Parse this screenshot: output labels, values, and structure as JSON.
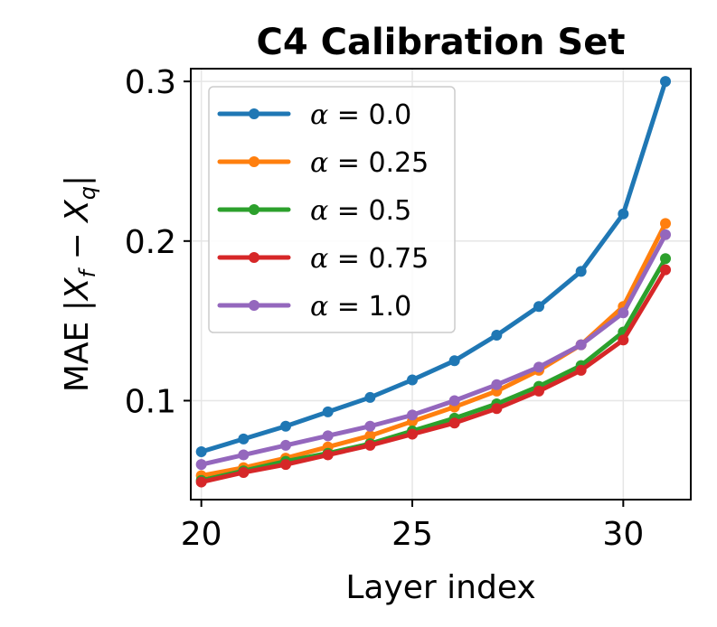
{
  "chart_data": {
    "type": "line",
    "title": "C4 Calibration Set",
    "xlabel": "Layer index",
    "ylabel": "MAE |X_f − X_q|",
    "ylabel_parts": {
      "prefix": "MAE |",
      "var": "X",
      "sub_f": "f",
      "minus": " − ",
      "sub_q": "q",
      "suffix": "|"
    },
    "xlim": [
      19.75,
      31.6
    ],
    "ylim": [
      0.038,
      0.308
    ],
    "xticks": [
      20,
      25,
      30
    ],
    "xtick_labels": [
      "20",
      "25",
      "30"
    ],
    "yticks": [
      0.1,
      0.2,
      0.3
    ],
    "ytick_labels": [
      "0.1",
      "0.2",
      "0.3"
    ],
    "grid": true,
    "legend_position": "top-left",
    "x": [
      20,
      21,
      22,
      23,
      24,
      25,
      26,
      27,
      28,
      29,
      30,
      31
    ],
    "series": [
      {
        "name": "α = 0.0",
        "alpha_value": "0.0",
        "color": "#1f77b4",
        "values": [
          0.068,
          0.076,
          0.084,
          0.093,
          0.102,
          0.113,
          0.125,
          0.141,
          0.159,
          0.181,
          0.217,
          0.3
        ]
      },
      {
        "name": "α = 0.25",
        "alpha_value": "0.25",
        "color": "#ff7f0e",
        "values": [
          0.053,
          0.058,
          0.064,
          0.071,
          0.078,
          0.087,
          0.096,
          0.106,
          0.119,
          0.135,
          0.159,
          0.211
        ]
      },
      {
        "name": "α = 0.5",
        "alpha_value": "0.5",
        "color": "#2ca02c",
        "values": [
          0.05,
          0.056,
          0.062,
          0.067,
          0.073,
          0.081,
          0.089,
          0.098,
          0.109,
          0.122,
          0.143,
          0.189
        ]
      },
      {
        "name": "α = 0.75",
        "alpha_value": "0.75",
        "color": "#d62728",
        "values": [
          0.049,
          0.055,
          0.06,
          0.066,
          0.072,
          0.079,
          0.086,
          0.095,
          0.106,
          0.119,
          0.138,
          0.182
        ]
      },
      {
        "name": "α = 1.0",
        "alpha_value": "1.0",
        "color": "#9467bd",
        "values": [
          0.06,
          0.066,
          0.072,
          0.078,
          0.084,
          0.091,
          0.1,
          0.11,
          0.121,
          0.135,
          0.155,
          0.204
        ]
      }
    ]
  }
}
